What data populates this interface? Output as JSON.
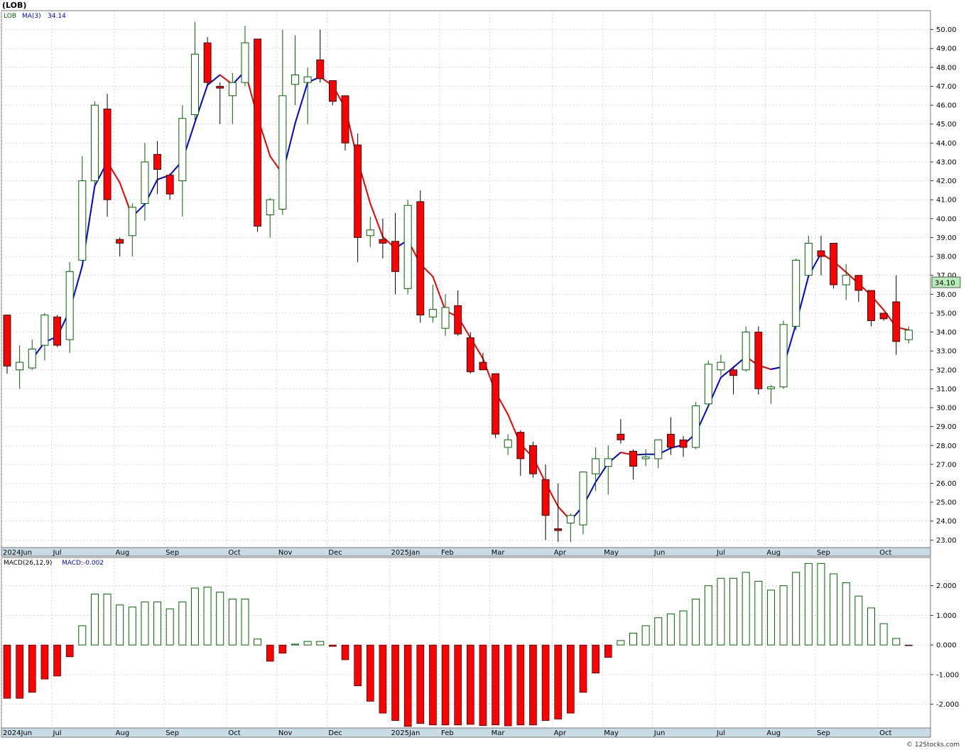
{
  "page": {
    "title": "(LOB)",
    "footer": "© 12Stocks.com"
  },
  "colors": {
    "up_outline": "#006400",
    "down_fill": "#ff0000",
    "ma_up": "#0000dd",
    "ma_down": "#ee0000",
    "axis_strip": "#c8dce8",
    "grid": "#bbbbbb",
    "last_price_bg": "#b8ecb8"
  },
  "chart_data": [
    {
      "type": "candlestick",
      "symbol_label": "LOB",
      "indicator_label": "MA(3)",
      "indicator_value": "34.14",
      "last_price_label": "34.10",
      "ylim": [
        22.6,
        51.0
      ],
      "y_ticks": [
        "23.00",
        "24.00",
        "25.00",
        "26.00",
        "27.00",
        "28.00",
        "29.00",
        "30.00",
        "31.00",
        "32.00",
        "33.00",
        "34.00",
        "35.00",
        "36.00",
        "37.00",
        "38.00",
        "39.00",
        "40.00",
        "41.00",
        "42.00",
        "43.00",
        "44.00",
        "45.00",
        "46.00",
        "47.00",
        "48.00",
        "49.00",
        "50.00"
      ],
      "x_labels": [
        {
          "label": "2024Jun",
          "week": 0
        },
        {
          "label": "Jul",
          "week": 4
        },
        {
          "label": "Aug",
          "week": 9
        },
        {
          "label": "Sep",
          "week": 13
        },
        {
          "label": "Oct",
          "week": 18
        },
        {
          "label": "Nov",
          "week": 22
        },
        {
          "label": "Dec",
          "week": 26
        },
        {
          "label": "2025Jan",
          "week": 31
        },
        {
          "label": "Feb",
          "week": 35
        },
        {
          "label": "Mar",
          "week": 39
        },
        {
          "label": "Apr",
          "week": 44
        },
        {
          "label": "May",
          "week": 48
        },
        {
          "label": "Jun",
          "week": 52
        },
        {
          "label": "Jul",
          "week": 57
        },
        {
          "label": "Aug",
          "week": 61
        },
        {
          "label": "Sep",
          "week": 65
        },
        {
          "label": "Oct",
          "week": 70
        }
      ],
      "candles": [
        {
          "o": 34.9,
          "h": 34.9,
          "l": 31.8,
          "c": 32.2
        },
        {
          "o": 32.0,
          "h": 33.3,
          "l": 31.0,
          "c": 32.4
        },
        {
          "o": 32.1,
          "h": 33.6,
          "l": 32.0,
          "c": 33.1
        },
        {
          "o": 33.3,
          "h": 35.0,
          "l": 32.5,
          "c": 34.9
        },
        {
          "o": 34.8,
          "h": 34.9,
          "l": 33.2,
          "c": 33.3
        },
        {
          "o": 33.6,
          "h": 37.7,
          "l": 32.9,
          "c": 37.2
        },
        {
          "o": 37.8,
          "h": 43.3,
          "l": 37.8,
          "c": 42.0
        },
        {
          "o": 42.0,
          "h": 46.2,
          "l": 41.8,
          "c": 46.0
        },
        {
          "o": 45.8,
          "h": 46.6,
          "l": 40.1,
          "c": 41.0
        },
        {
          "o": 38.9,
          "h": 39.0,
          "l": 38.0,
          "c": 38.7
        },
        {
          "o": 39.1,
          "h": 40.8,
          "l": 38.0,
          "c": 40.6
        },
        {
          "o": 40.8,
          "h": 44.0,
          "l": 39.9,
          "c": 43.0
        },
        {
          "o": 43.4,
          "h": 44.1,
          "l": 41.3,
          "c": 42.6
        },
        {
          "o": 42.3,
          "h": 42.4,
          "l": 41.0,
          "c": 41.3
        },
        {
          "o": 42.0,
          "h": 46.0,
          "l": 40.1,
          "c": 45.3
        },
        {
          "o": 45.5,
          "h": 50.4,
          "l": 45.2,
          "c": 48.7
        },
        {
          "o": 49.3,
          "h": 49.6,
          "l": 47.0,
          "c": 47.2
        },
        {
          "o": 47.0,
          "h": 47.2,
          "l": 45.0,
          "c": 46.9
        },
        {
          "o": 46.5,
          "h": 47.7,
          "l": 45.0,
          "c": 47.2
        },
        {
          "o": 47.2,
          "h": 50.2,
          "l": 47.0,
          "c": 49.3
        },
        {
          "o": 49.5,
          "h": 49.5,
          "l": 39.3,
          "c": 39.6
        },
        {
          "o": 40.2,
          "h": 41.1,
          "l": 39.0,
          "c": 41.0
        },
        {
          "o": 40.5,
          "h": 50.0,
          "l": 40.2,
          "c": 46.5
        },
        {
          "o": 47.1,
          "h": 49.7,
          "l": 46.0,
          "c": 47.6
        },
        {
          "o": 47.2,
          "h": 48.0,
          "l": 45.0,
          "c": 47.5
        },
        {
          "o": 48.4,
          "h": 50.0,
          "l": 47.2,
          "c": 47.4
        },
        {
          "o": 47.3,
          "h": 47.3,
          "l": 46.0,
          "c": 46.2
        },
        {
          "o": 46.5,
          "h": 46.5,
          "l": 43.6,
          "c": 44.0
        },
        {
          "o": 43.9,
          "h": 44.5,
          "l": 37.7,
          "c": 39.0
        },
        {
          "o": 39.1,
          "h": 40.1,
          "l": 38.5,
          "c": 39.4
        },
        {
          "o": 38.9,
          "h": 40.0,
          "l": 37.9,
          "c": 38.7
        },
        {
          "o": 38.8,
          "h": 40.3,
          "l": 36.0,
          "c": 37.2
        },
        {
          "o": 36.3,
          "h": 41.0,
          "l": 36.0,
          "c": 40.7
        },
        {
          "o": 40.9,
          "h": 41.5,
          "l": 34.5,
          "c": 34.9
        },
        {
          "o": 34.8,
          "h": 36.5,
          "l": 34.5,
          "c": 35.2
        },
        {
          "o": 34.2,
          "h": 36.0,
          "l": 33.8,
          "c": 35.3
        },
        {
          "o": 35.4,
          "h": 36.2,
          "l": 33.8,
          "c": 33.9
        },
        {
          "o": 33.7,
          "h": 34.0,
          "l": 31.8,
          "c": 31.9
        },
        {
          "o": 32.4,
          "h": 32.9,
          "l": 32.0,
          "c": 32.0
        },
        {
          "o": 31.8,
          "h": 31.8,
          "l": 28.4,
          "c": 28.6
        },
        {
          "o": 27.9,
          "h": 28.6,
          "l": 27.5,
          "c": 28.3
        },
        {
          "o": 28.7,
          "h": 28.8,
          "l": 26.4,
          "c": 27.3
        },
        {
          "o": 28.0,
          "h": 28.2,
          "l": 26.3,
          "c": 26.5
        },
        {
          "o": 26.2,
          "h": 27.0,
          "l": 23.0,
          "c": 24.3
        },
        {
          "o": 23.6,
          "h": 26.0,
          "l": 22.9,
          "c": 23.5
        },
        {
          "o": 23.9,
          "h": 24.4,
          "l": 22.9,
          "c": 24.3
        },
        {
          "o": 23.8,
          "h": 26.6,
          "l": 23.3,
          "c": 26.6
        },
        {
          "o": 26.5,
          "h": 27.9,
          "l": 25.6,
          "c": 27.3
        },
        {
          "o": 26.9,
          "h": 28.0,
          "l": 25.4,
          "c": 27.3
        },
        {
          "o": 28.6,
          "h": 29.4,
          "l": 28.1,
          "c": 28.3
        },
        {
          "o": 27.7,
          "h": 27.8,
          "l": 26.2,
          "c": 26.9
        },
        {
          "o": 27.3,
          "h": 27.8,
          "l": 26.9,
          "c": 27.4
        },
        {
          "o": 27.3,
          "h": 28.2,
          "l": 26.8,
          "c": 28.3
        },
        {
          "o": 28.6,
          "h": 29.5,
          "l": 27.5,
          "c": 27.9
        },
        {
          "o": 28.3,
          "h": 28.5,
          "l": 27.4,
          "c": 27.9
        },
        {
          "o": 27.9,
          "h": 30.3,
          "l": 27.8,
          "c": 30.1
        },
        {
          "o": 30.2,
          "h": 32.5,
          "l": 30.0,
          "c": 32.3
        },
        {
          "o": 32.0,
          "h": 32.8,
          "l": 31.7,
          "c": 32.4
        },
        {
          "o": 32.0,
          "h": 32.2,
          "l": 30.7,
          "c": 31.7
        },
        {
          "o": 32.0,
          "h": 34.3,
          "l": 31.9,
          "c": 34.0
        },
        {
          "o": 34.0,
          "h": 34.3,
          "l": 30.7,
          "c": 31.0
        },
        {
          "o": 31.0,
          "h": 31.2,
          "l": 30.2,
          "c": 31.1
        },
        {
          "o": 31.1,
          "h": 34.6,
          "l": 31.0,
          "c": 34.4
        },
        {
          "o": 34.3,
          "h": 37.9,
          "l": 34.1,
          "c": 37.8
        },
        {
          "o": 37.0,
          "h": 39.1,
          "l": 37.0,
          "c": 38.7
        },
        {
          "o": 38.3,
          "h": 39.1,
          "l": 37.0,
          "c": 38.0
        },
        {
          "o": 38.7,
          "h": 38.7,
          "l": 36.3,
          "c": 36.5
        },
        {
          "o": 36.5,
          "h": 37.6,
          "l": 35.7,
          "c": 37.0
        },
        {
          "o": 37.0,
          "h": 37.0,
          "l": 35.6,
          "c": 36.2
        },
        {
          "o": 36.2,
          "h": 36.2,
          "l": 34.3,
          "c": 34.6
        },
        {
          "o": 35.0,
          "h": 35.0,
          "l": 34.6,
          "c": 34.7
        },
        {
          "o": 35.6,
          "h": 37.0,
          "l": 32.8,
          "c": 33.5
        },
        {
          "o": 33.6,
          "h": 34.3,
          "l": 33.4,
          "c": 34.1
        }
      ]
    },
    {
      "type": "bar",
      "indicator_label": "MACD(26,12,9)",
      "value_label": "MACD:-0.002",
      "ylim": [
        -2.8,
        2.95
      ],
      "y_ticks": [
        "2.000",
        "1.000",
        "0.000",
        "-1.000",
        "-2.000"
      ],
      "x_labels_ref": "same as price panel",
      "values": [
        -1.8,
        -1.8,
        -1.6,
        -1.15,
        -1.05,
        -0.4,
        0.65,
        1.72,
        1.72,
        1.35,
        1.28,
        1.45,
        1.45,
        1.22,
        1.45,
        1.92,
        1.95,
        1.78,
        1.55,
        1.55,
        0.2,
        -0.55,
        -0.28,
        0.03,
        0.12,
        0.12,
        -0.05,
        -0.5,
        -1.38,
        -1.9,
        -2.3,
        -2.55,
        -2.75,
        -2.65,
        -2.7,
        -2.7,
        -2.7,
        -2.68,
        -2.72,
        -2.7,
        -2.73,
        -2.7,
        -2.7,
        -2.55,
        -2.5,
        -2.3,
        -1.6,
        -0.95,
        -0.42,
        0.15,
        0.4,
        0.65,
        0.92,
        1.05,
        1.15,
        1.55,
        2.0,
        2.25,
        2.25,
        2.45,
        2.15,
        1.85,
        2.0,
        2.45,
        2.75,
        2.75,
        2.4,
        2.1,
        1.65,
        1.25,
        0.72,
        0.22,
        -0.002
      ]
    }
  ]
}
